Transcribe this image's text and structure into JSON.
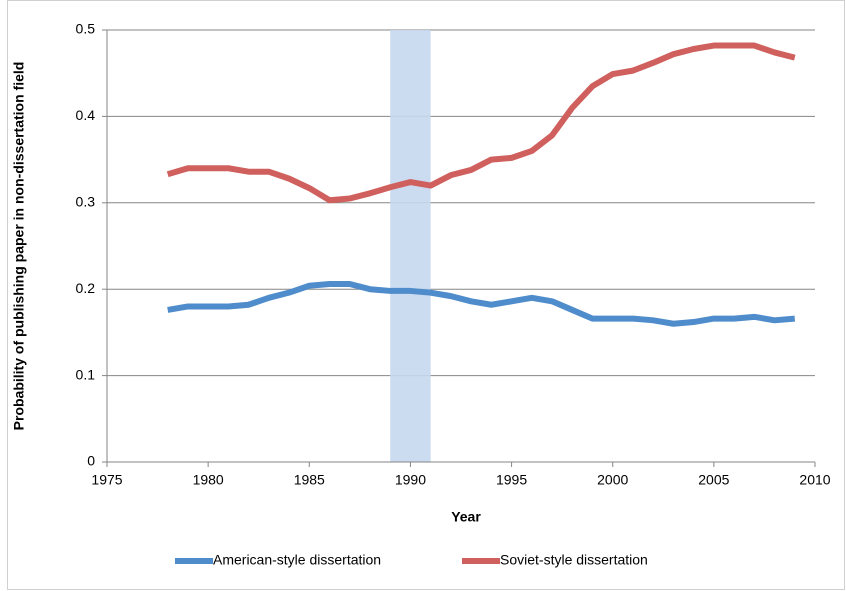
{
  "chart_data": {
    "type": "line",
    "xlabel": "Year",
    "ylabel": "Probability of publishing paper in non-dissertation field",
    "x": [
      1978,
      1979,
      1980,
      1981,
      1982,
      1983,
      1984,
      1985,
      1986,
      1987,
      1988,
      1989,
      1990,
      1991,
      1992,
      1993,
      1994,
      1995,
      1996,
      1997,
      1998,
      1999,
      2000,
      2001,
      2002,
      2003,
      2004,
      2005,
      2006,
      2007,
      2008,
      2009
    ],
    "series": [
      {
        "name": "American-style dissertation",
        "color": "#4f8ccb",
        "values": [
          0.176,
          0.18,
          0.18,
          0.18,
          0.182,
          0.19,
          0.196,
          0.204,
          0.206,
          0.206,
          0.2,
          0.198,
          0.198,
          0.196,
          0.192,
          0.186,
          0.182,
          0.186,
          0.19,
          0.186,
          0.176,
          0.166,
          0.166,
          0.166,
          0.164,
          0.16,
          0.162,
          0.166,
          0.166,
          0.168,
          0.164,
          0.166
        ]
      },
      {
        "name": "Soviet-style dissertation",
        "color": "#d0605d",
        "values": [
          0.333,
          0.34,
          0.34,
          0.34,
          0.336,
          0.336,
          0.328,
          0.317,
          0.303,
          0.305,
          0.311,
          0.318,
          0.324,
          0.32,
          0.332,
          0.338,
          0.35,
          0.352,
          0.36,
          0.378,
          0.41,
          0.435,
          0.449,
          0.453,
          0.462,
          0.472,
          0.478,
          0.482,
          0.482,
          0.482,
          0.474,
          0.468
        ]
      }
    ],
    "highlight_x": [
      1989,
      1991
    ],
    "highlight_color": "#c5d8ee",
    "xlim": [
      1975,
      2010
    ],
    "xticks": [
      1975,
      1980,
      1985,
      1990,
      1995,
      2000,
      2005,
      2010
    ],
    "ylim": [
      0,
      0.5
    ],
    "yticks": [
      0,
      0.1,
      0.2,
      0.3,
      0.4,
      0.5
    ],
    "grid": true,
    "legend": "bottom"
  }
}
